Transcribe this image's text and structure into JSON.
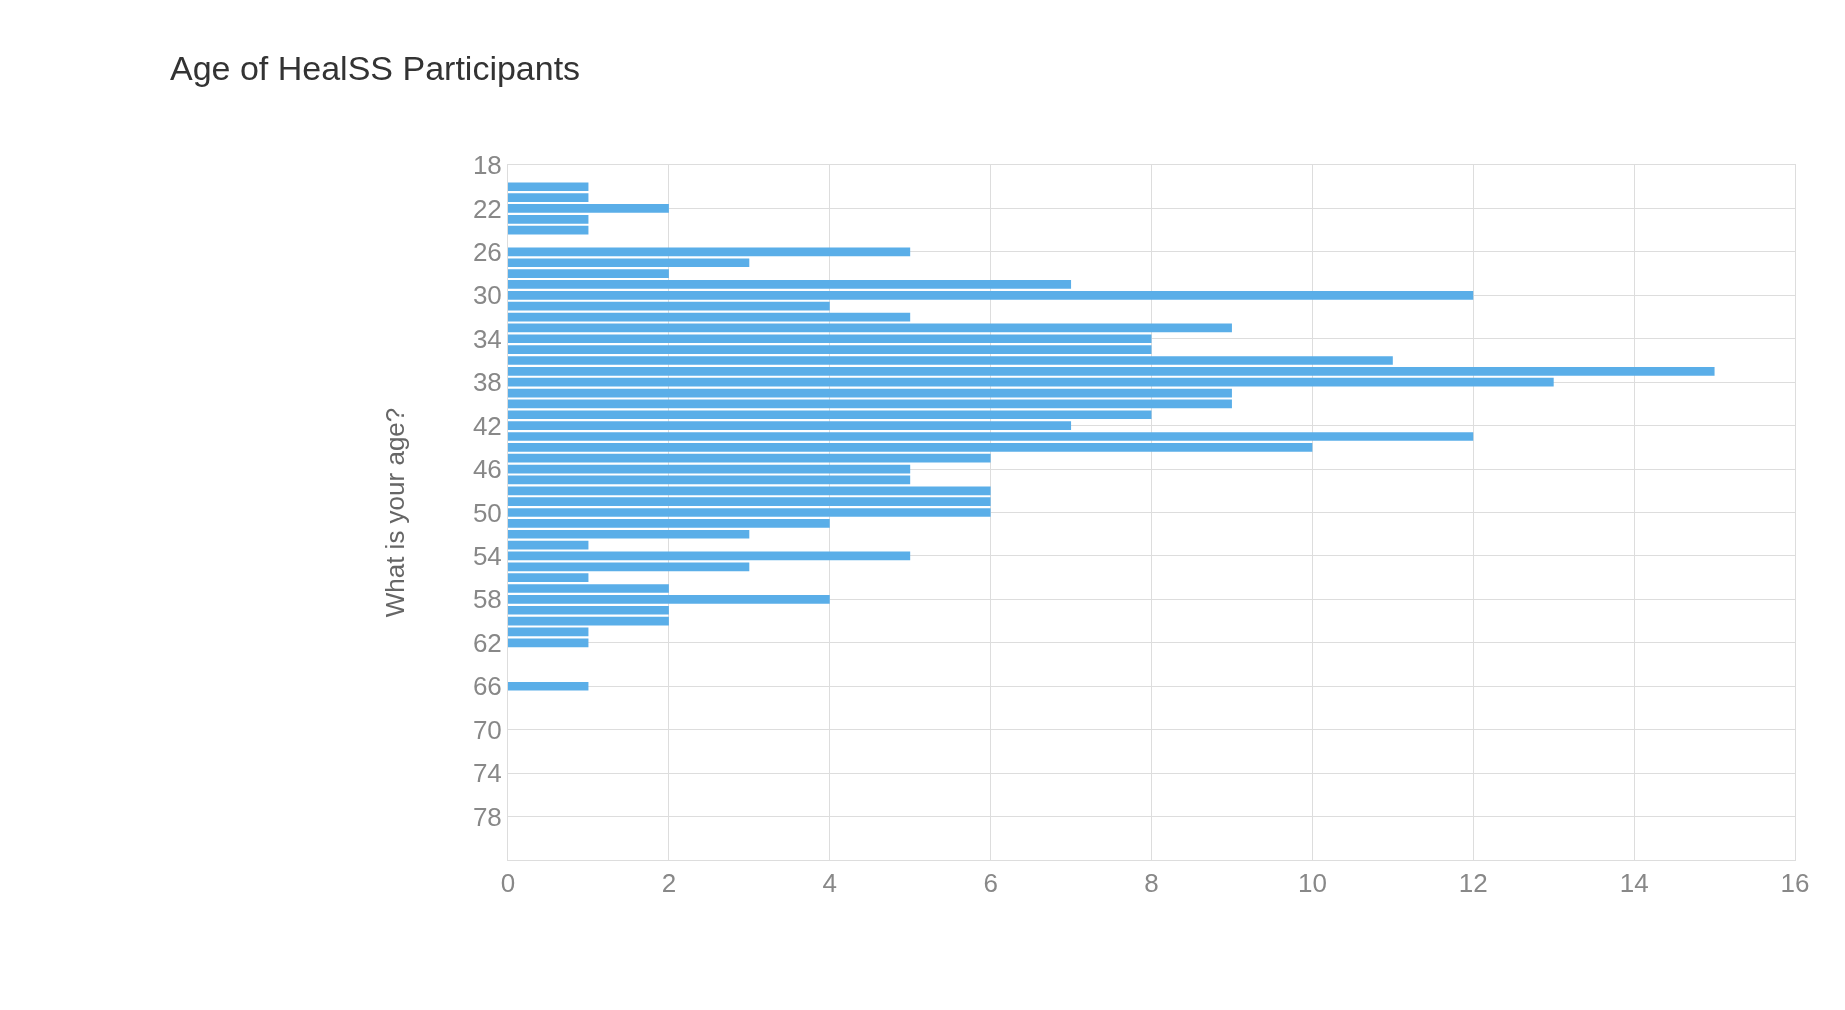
{
  "chart_data": {
    "type": "bar",
    "orientation": "horizontal",
    "title": "Age of HealSS Participants",
    "ylabel": "What is your age?",
    "x": [
      20,
      21,
      22,
      23,
      24,
      26,
      27,
      28,
      29,
      30,
      31,
      32,
      33,
      34,
      35,
      36,
      37,
      38,
      39,
      40,
      41,
      42,
      43,
      44,
      45,
      46,
      47,
      48,
      49,
      50,
      51,
      52,
      53,
      54,
      55,
      56,
      57,
      58,
      59,
      60,
      61,
      62,
      66
    ],
    "values": [
      1,
      1,
      2,
      1,
      1,
      5,
      3,
      2,
      7,
      12,
      4,
      5,
      9,
      8,
      8,
      11,
      15,
      13,
      9,
      9,
      8,
      7,
      12,
      10,
      6,
      5,
      5,
      6,
      6,
      6,
      4,
      3,
      1,
      5,
      3,
      1,
      2,
      4,
      2,
      2,
      1,
      1,
      1
    ],
    "color": "#5aaee8",
    "xlim": [
      0,
      16
    ],
    "xticks": [
      0,
      2,
      4,
      6,
      8,
      10,
      12,
      14,
      16
    ],
    "ylim": [
      82,
      18
    ],
    "yticks": [
      18,
      22,
      26,
      30,
      34,
      38,
      42,
      46,
      50,
      54,
      58,
      62,
      66,
      70,
      74,
      78
    ],
    "grid": true
  }
}
